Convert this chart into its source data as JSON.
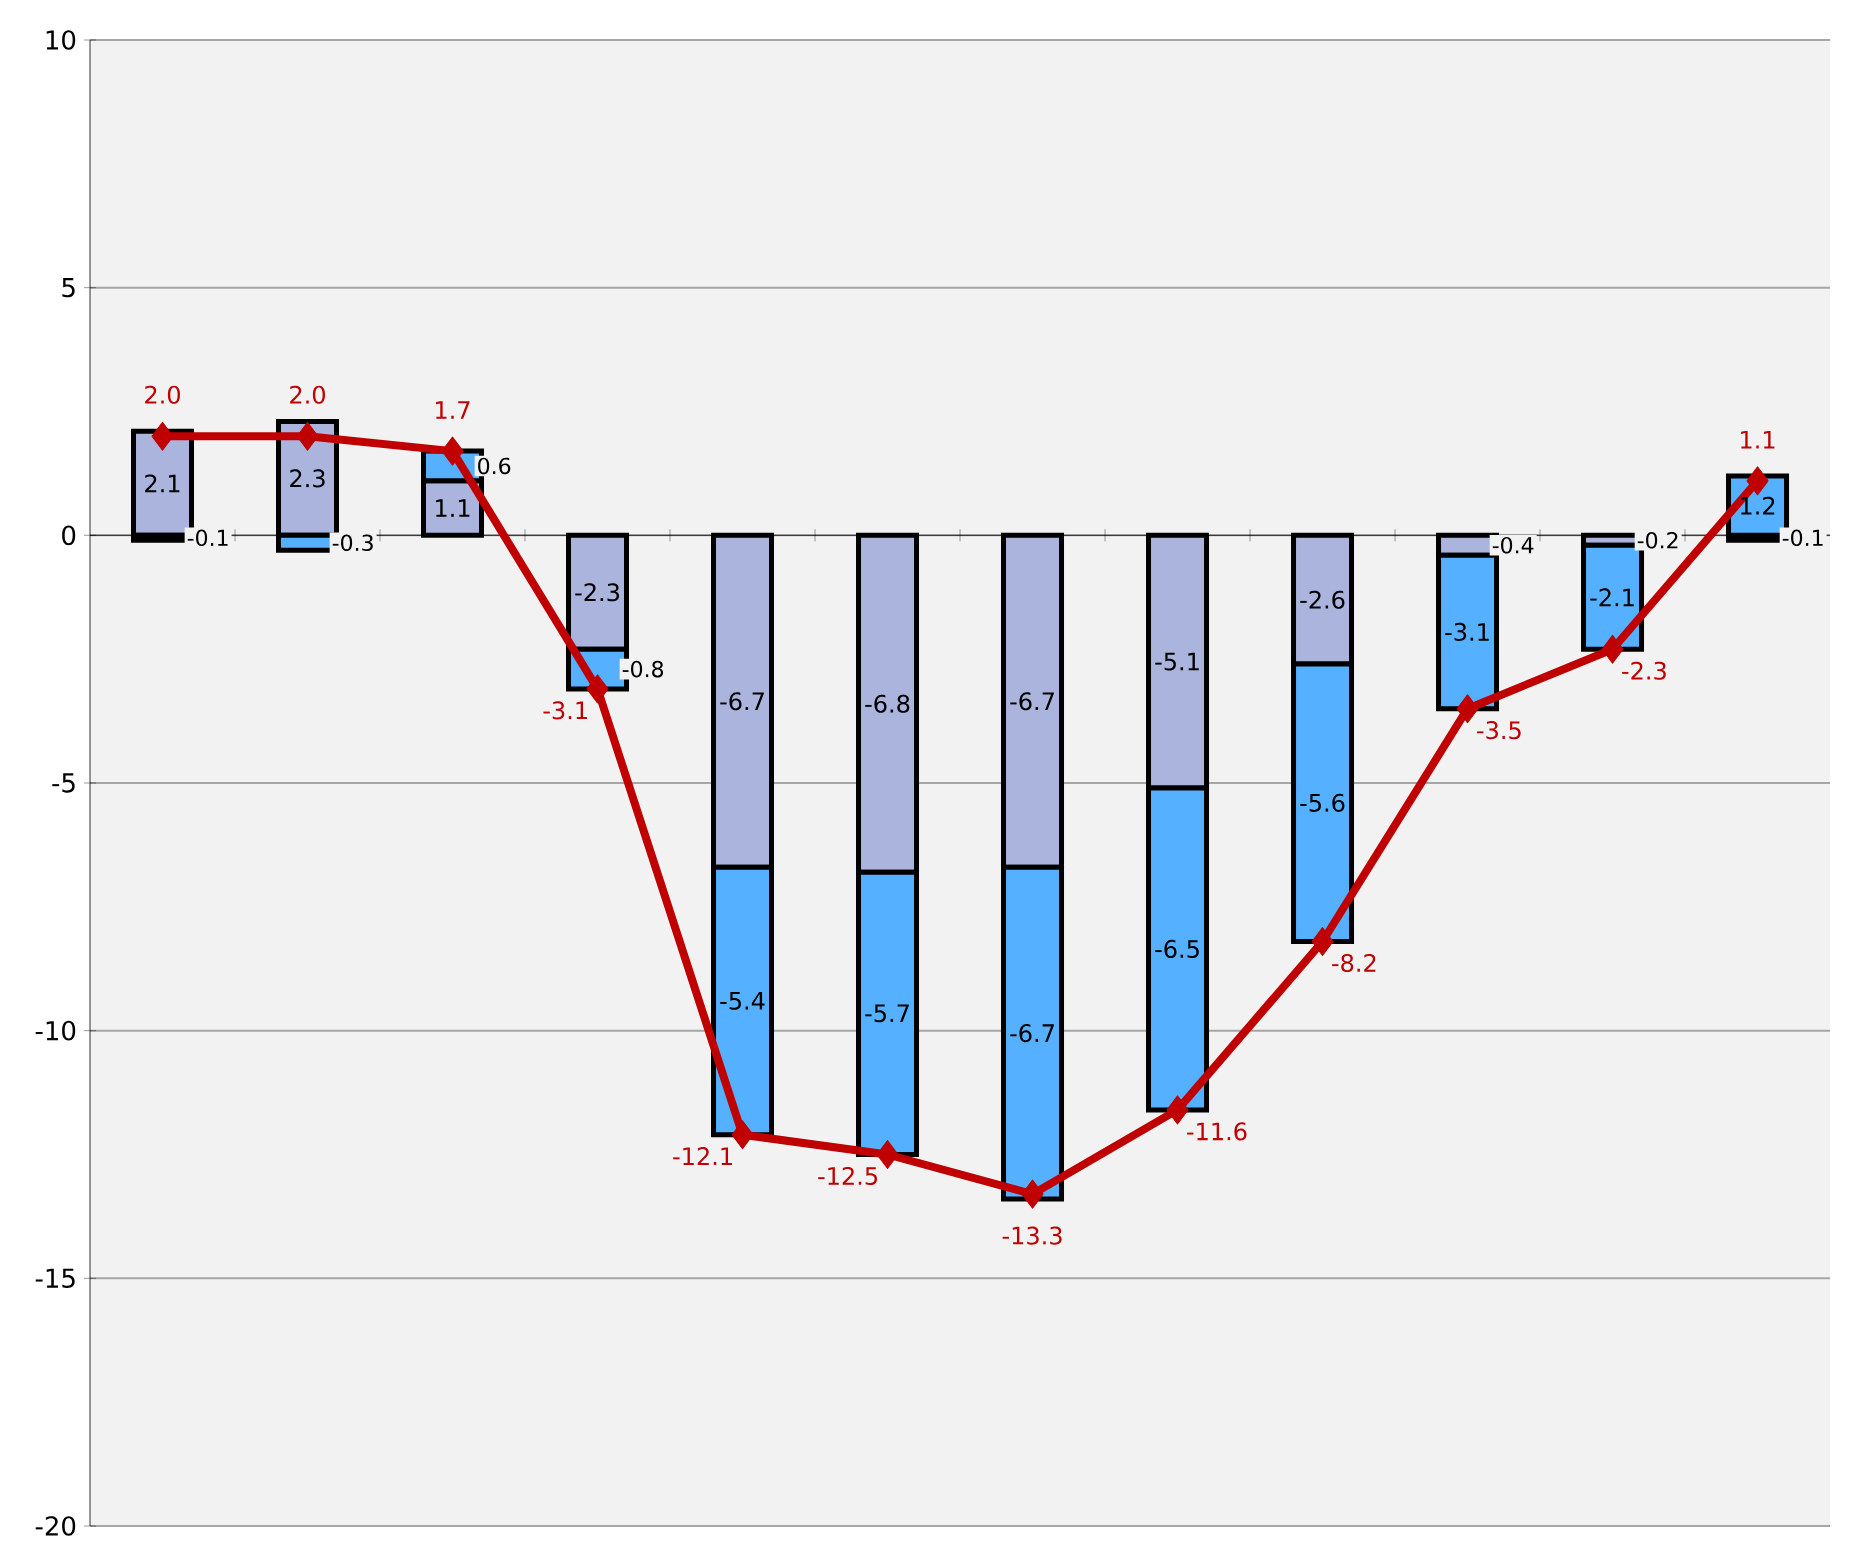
{
  "chart_data": {
    "type": "bar",
    "stacked": true,
    "categories": [
      null,
      null,
      null,
      null,
      null,
      null,
      null,
      null,
      null,
      null,
      null,
      null
    ],
    "series": [
      {
        "color": "#aab4dc",
        "values": [
          2.1,
          2.3,
          1.1,
          -2.3,
          -6.7,
          -6.8,
          -6.7,
          -5.1,
          -2.6,
          -0.4,
          -0.2,
          -0.1
        ],
        "value_labels": [
          "2.1",
          "2.3",
          "1.1",
          "-2.3",
          "-6.7",
          "-6.8",
          "-6.7",
          "-5.1",
          "-2.6",
          "-0.4",
          "-0.2",
          "-0.1"
        ]
      },
      {
        "color": "#55b0ff",
        "values": [
          -0.1,
          -0.3,
          0.6,
          -0.8,
          -5.4,
          -5.7,
          -6.7,
          -6.5,
          -5.6,
          -3.1,
          -2.1,
          1.2
        ],
        "value_labels": [
          "-0.1",
          "-0.3",
          "0.6",
          "-0.8",
          "-5.4",
          "-5.7",
          "-6.7",
          "-6.5",
          "-5.6",
          "-3.1",
          "-2.1",
          "1.2"
        ]
      },
      {
        "type": "line",
        "color": "#c00000",
        "values": [
          2.0,
          2.0,
          1.7,
          -3.1,
          -12.1,
          -12.5,
          -13.3,
          -11.6,
          -8.2,
          -3.5,
          -2.3,
          1.1
        ],
        "value_labels": [
          "2.0",
          "2.0",
          "1.7",
          "-3.1",
          "-12.1",
          "-12.5",
          "-13.3",
          "-11.6",
          "-8.2",
          "-3.5",
          "-2.3",
          "1.1"
        ]
      }
    ],
    "marker": "diamond",
    "ylim": [
      -20,
      10
    ],
    "yticks": [
      -20,
      -15,
      -10,
      -5,
      0,
      5,
      10
    ],
    "grid": "y",
    "tick_labels": "y"
  }
}
